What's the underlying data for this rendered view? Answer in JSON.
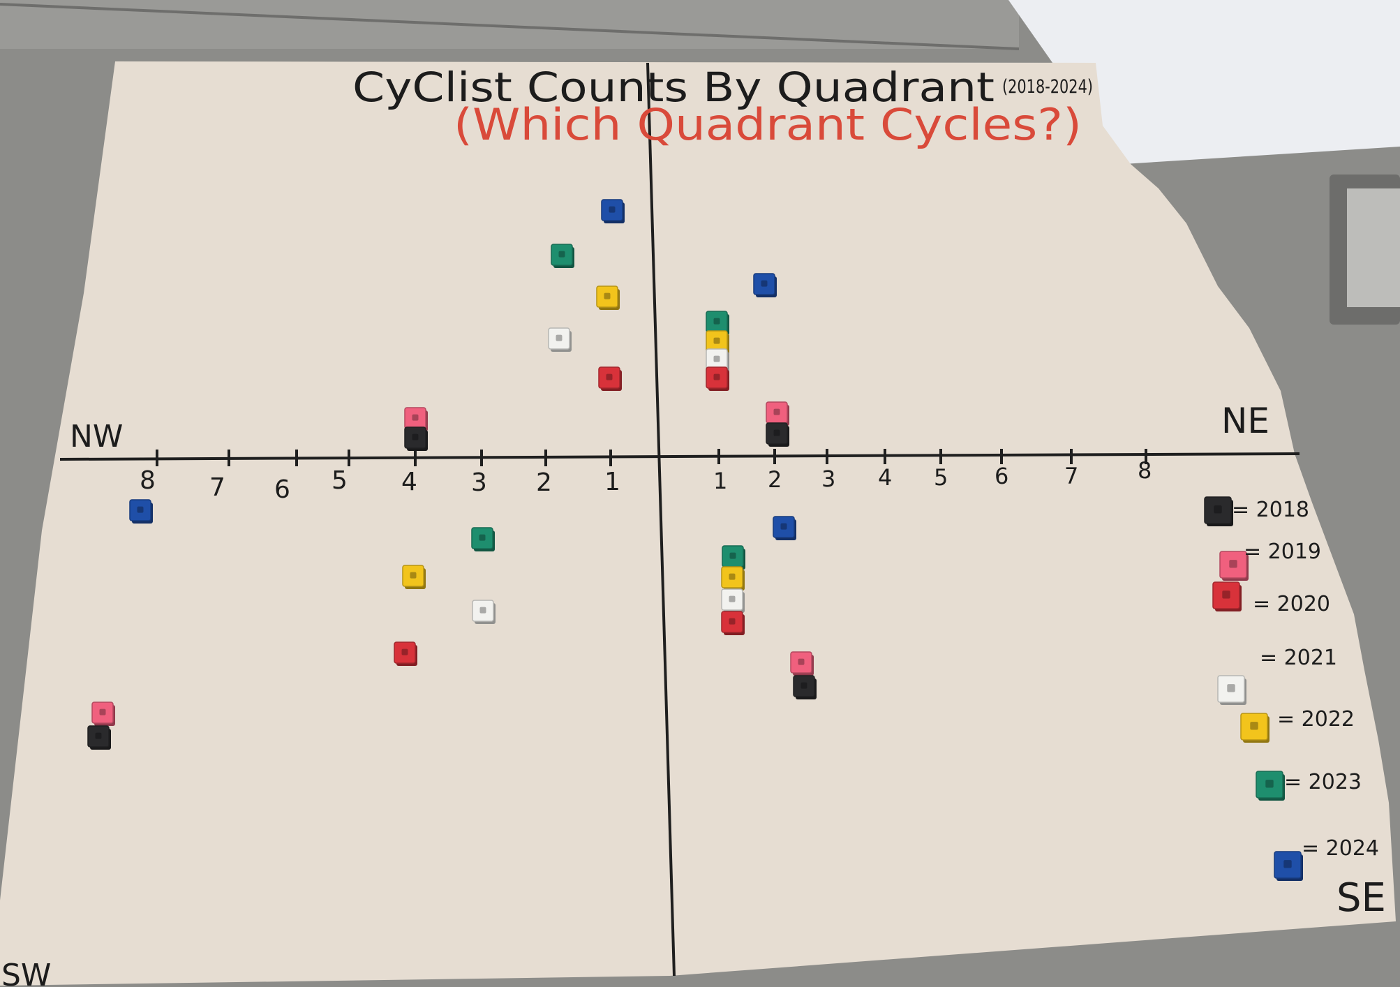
{
  "poster": {
    "title": "CyClist Counts By Quadrant",
    "title_years": "(2018-2024)",
    "subtitle": "(Which Quadrant Cycles?)"
  },
  "quadrant_labels": {
    "nw": "NW",
    "ne": "NE",
    "se": "SE",
    "sw": "SW"
  },
  "axis": {
    "left_ticks": [
      "8",
      "7",
      "6",
      "5",
      "4",
      "3",
      "2",
      "1"
    ],
    "right_ticks": [
      "1",
      "2",
      "3",
      "4",
      "5",
      "6",
      "7",
      "8"
    ]
  },
  "legend": [
    {
      "year": "= 2018",
      "color": "#2a2a2c"
    },
    {
      "year": "= 2019",
      "color": "#f0607e"
    },
    {
      "year": "= 2020",
      "color": "#d8323a"
    },
    {
      "year": "= 2021",
      "color": "#f2f2ef"
    },
    {
      "year": "= 2022",
      "color": "#f2c41c"
    },
    {
      "year": "= 2023",
      "color": "#1e8e6e"
    },
    {
      "year": "= 2024",
      "color": "#1f4fa8"
    }
  ],
  "colors": {
    "paper": "#e6ddd2",
    "table": "#8c8c89",
    "title_ink": "#1c1c1c",
    "subtitle_ink": "#d94a3a"
  }
}
